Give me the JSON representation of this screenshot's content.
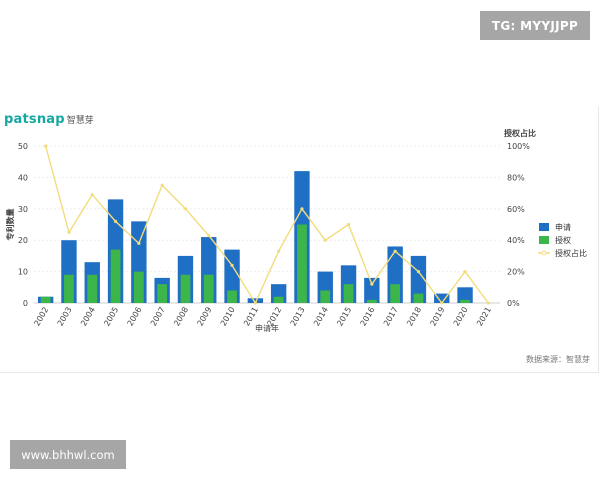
{
  "watermark_top": "TG: MYYJJPP",
  "watermark_bottom": "www.bhhwl.com",
  "logo": {
    "brand": "patsnap",
    "cn": "智慧芽"
  },
  "source_note": "数据来源：智慧芽",
  "chart_data": {
    "type": "bar",
    "categories": [
      "2002",
      "2003",
      "2004",
      "2005",
      "2006",
      "2007",
      "2008",
      "2009",
      "2010",
      "2011",
      "2012",
      "2013",
      "2014",
      "2015",
      "2016",
      "2017",
      "2018",
      "2019",
      "2020",
      "2021"
    ],
    "series": [
      {
        "name": "申请",
        "type": "bar",
        "color": "#1f6fc5",
        "axis": "left",
        "values": [
          2,
          20,
          13,
          33,
          26,
          8,
          15,
          21,
          17,
          1.5,
          6,
          42,
          10,
          12,
          8,
          18,
          15,
          3,
          5,
          0
        ]
      },
      {
        "name": "授权",
        "type": "bar",
        "color": "#3cb54a",
        "axis": "left",
        "values": [
          2,
          9,
          9,
          17,
          10,
          6,
          9,
          9,
          4,
          0,
          2,
          25,
          4,
          6,
          1,
          6,
          3,
          0,
          1,
          0
        ]
      },
      {
        "name": "授权占比",
        "type": "line",
        "color": "#f2dc7c",
        "axis": "right",
        "values": [
          100,
          45,
          69,
          52,
          38,
          75,
          60,
          43,
          24,
          0,
          33,
          60,
          40,
          50,
          12,
          33,
          20,
          0,
          20,
          0
        ]
      }
    ],
    "xlabel": "申请年",
    "ylabel": "专利数量",
    "y2label": "授权占比",
    "ylim": [
      0,
      50
    ],
    "yticks": [
      0,
      10,
      20,
      30,
      40,
      50
    ],
    "y2lim": [
      0,
      100
    ],
    "y2ticks": [
      "0%",
      "20%",
      "40%",
      "60%",
      "80%",
      "100%"
    ],
    "grid": true,
    "legend_position": "right"
  }
}
